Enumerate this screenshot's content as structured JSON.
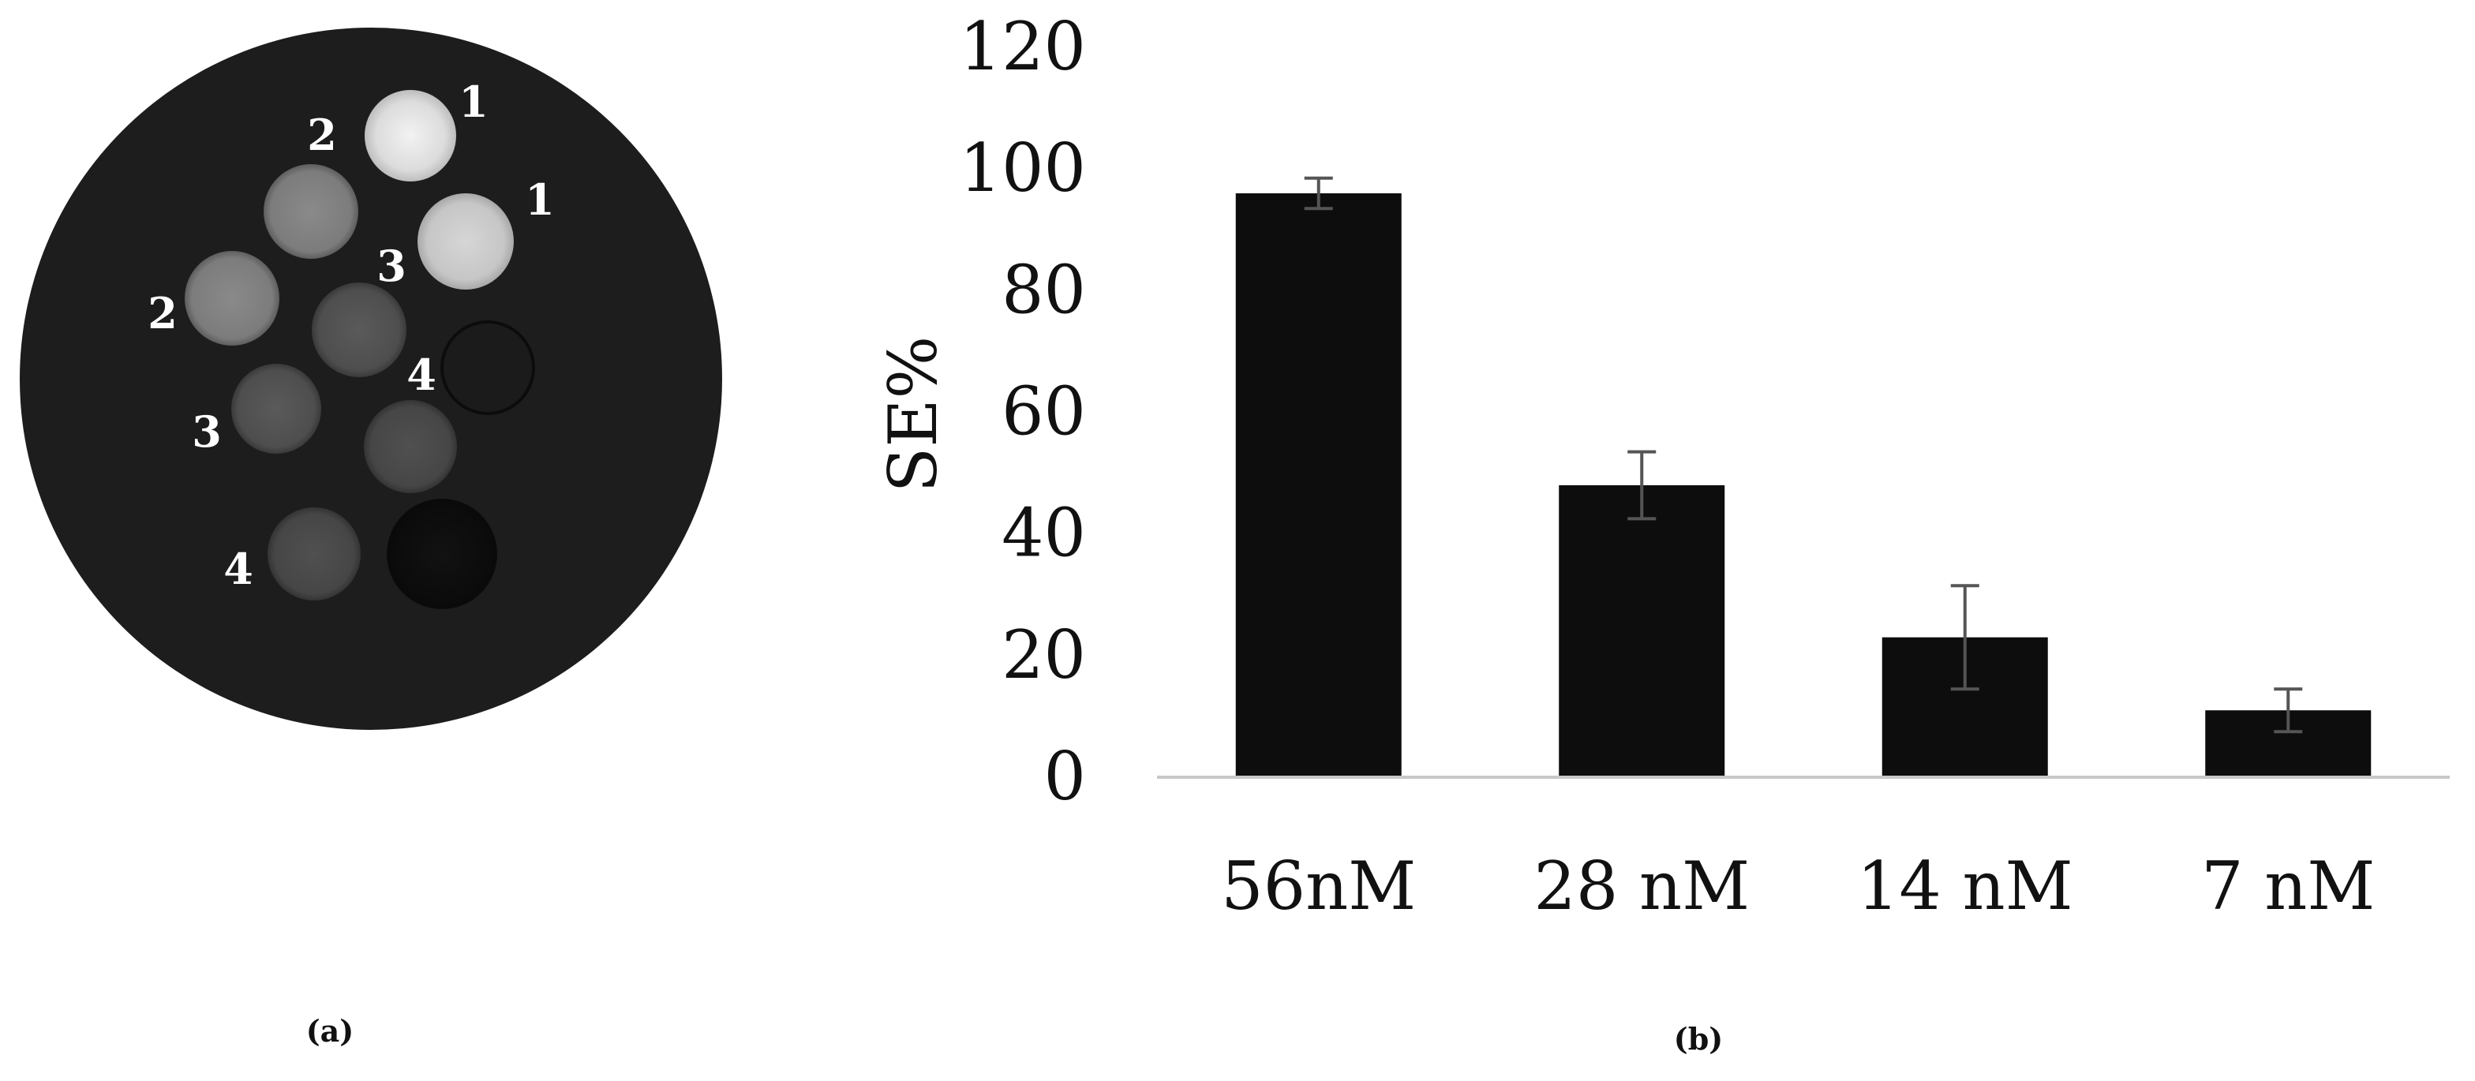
{
  "panels": {
    "a": {
      "label": "(a)",
      "phantom_numbers": [
        "1",
        "1",
        "2",
        "2",
        "3",
        "3",
        "4",
        "4"
      ]
    },
    "b": {
      "label": "(b)"
    }
  },
  "chart_data": {
    "type": "bar",
    "categories": [
      "56nM",
      "28 nM",
      "14 nM",
      "7 nM"
    ],
    "values": [
      96,
      48,
      23,
      11
    ],
    "error": [
      2.5,
      5.5,
      8.5,
      3.5
    ],
    "xlabel": "",
    "ylabel": "SE%",
    "ylim": [
      0,
      120
    ],
    "yticks": [
      "0",
      "20",
      "40",
      "60",
      "80",
      "100",
      "120"
    ],
    "grid": false,
    "legend": "none",
    "bar_color": "#0d0d0d",
    "error_bar_color": "#555555",
    "axis_color": "#c8c8c8"
  }
}
